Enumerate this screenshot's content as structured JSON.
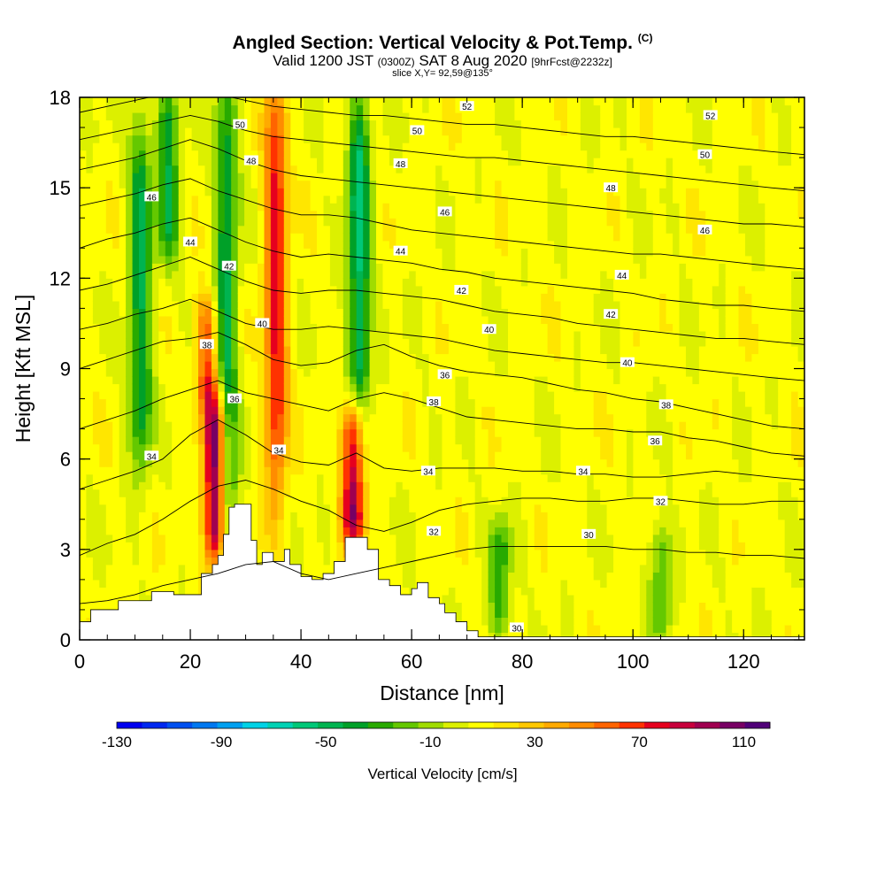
{
  "header": {
    "title_main": "Angled Section: Vertical Velocity & Pot.Temp.",
    "title_units": "(C)",
    "valid_prefix": "Valid 1200 JST",
    "valid_utc": "(0300Z)",
    "valid_date": "SAT 8 Aug 2020",
    "forecast_info": "[9hrFcst@2232z]",
    "slice_info": "slice X,Y= 92,59@135°"
  },
  "chart_data": {
    "type": "heatmap",
    "xlabel": "Distance [nm]",
    "ylabel": "Height [Kft MSL]",
    "xlim": [
      0,
      131
    ],
    "ylim": [
      0,
      18
    ],
    "x_ticks": [
      0,
      20,
      40,
      60,
      80,
      100,
      120
    ],
    "y_ticks": [
      0,
      3,
      6,
      9,
      12,
      15,
      18
    ],
    "colorbar": {
      "label": "Vertical Velocity [cm/s]",
      "range": [
        -130,
        120
      ],
      "tick_labels": [
        -130,
        -90,
        -50,
        -10,
        30,
        70,
        110
      ],
      "colors": [
        "#0000f0",
        "#0028f0",
        "#0050f0",
        "#0078f0",
        "#00a0f0",
        "#00d2e6",
        "#00d2b4",
        "#00c878",
        "#00b450",
        "#00a028",
        "#28aa00",
        "#64c800",
        "#a0dc00",
        "#dcf000",
        "#ffff00",
        "#ffe600",
        "#ffc800",
        "#ffaa00",
        "#ff8c00",
        "#ff6400",
        "#ff3200",
        "#e6001e",
        "#c8003c",
        "#a00050",
        "#780064",
        "#500078"
      ]
    },
    "updrafts": [
      {
        "x": 24.5,
        "z_bottom": 3.0,
        "z_top": 7.5,
        "peak": 115
      },
      {
        "x": 35.5,
        "z_bottom": 5.5,
        "z_top": 18.0,
        "peak": 75
      },
      {
        "x": 49.5,
        "z_bottom": 3.5,
        "z_top": 7.5,
        "peak": 100
      },
      {
        "x": 23.0,
        "z_bottom": 8.0,
        "z_top": 11.0,
        "peak": 60
      }
    ],
    "downdrafts": [
      {
        "x": 11,
        "z_bottom": 6.5,
        "z_top": 16.5,
        "peak": -45
      },
      {
        "x": 16,
        "z_bottom": 13.0,
        "z_top": 18.0,
        "peak": -40
      },
      {
        "x": 26.5,
        "z_bottom": 3.0,
        "z_top": 18.0,
        "peak": -45
      },
      {
        "x": 50.5,
        "z_bottom": 7.5,
        "z_top": 17.5,
        "peak": -55
      },
      {
        "x": 76,
        "z_bottom": 0.5,
        "z_top": 3.5,
        "peak": -30
      },
      {
        "x": 105,
        "z_bottom": 0.5,
        "z_top": 3.5,
        "peak": -25
      }
    ],
    "terrain": {
      "x": [
        0,
        1,
        2,
        7,
        13,
        17,
        22,
        24,
        25,
        26,
        27,
        28,
        31,
        32,
        33,
        35,
        37,
        38,
        40,
        42,
        44,
        46,
        48,
        52,
        54,
        56,
        58,
        60,
        61,
        63,
        65,
        66,
        68,
        70,
        72,
        131
      ],
      "z": [
        0.6,
        0.6,
        1.0,
        1.3,
        1.6,
        1.5,
        2.2,
        2.5,
        2.8,
        3.5,
        4.4,
        4.5,
        3.3,
        2.5,
        2.9,
        2.6,
        3.0,
        2.5,
        2.1,
        2.0,
        2.2,
        2.6,
        3.4,
        3.0,
        2.0,
        1.8,
        1.5,
        1.7,
        1.9,
        1.4,
        1.2,
        0.9,
        0.6,
        0.3,
        0.1,
        0.1
      ]
    },
    "isentropes": [
      {
        "label": "30",
        "z": [
          1.2,
          1.3,
          1.5,
          1.8,
          2.0,
          2.2,
          2.5,
          2.6,
          2.2,
          2.0,
          2.2,
          2.4,
          2.6,
          2.8,
          3.0,
          3.1,
          3.1,
          3.1,
          3.1,
          3.1,
          3.0,
          3.0,
          2.9,
          2.9,
          2.8,
          2.8,
          2.7
        ]
      },
      {
        "label": "32",
        "z": [
          2.8,
          3.2,
          3.5,
          4.0,
          4.6,
          5.1,
          5.3,
          5.0,
          4.6,
          4.3,
          3.8,
          3.6,
          3.9,
          4.3,
          4.5,
          4.6,
          4.7,
          4.7,
          4.6,
          4.6,
          4.7,
          4.7,
          4.6,
          4.5,
          4.5,
          4.6,
          4.6
        ]
      },
      {
        "label": "34",
        "z": [
          5.0,
          5.3,
          5.6,
          6.0,
          6.8,
          7.3,
          6.8,
          6.2,
          5.9,
          5.8,
          6.2,
          5.7,
          5.6,
          5.7,
          5.7,
          5.7,
          5.6,
          5.6,
          5.5,
          5.5,
          5.4,
          5.4,
          5.5,
          5.6,
          5.5,
          5.4,
          5.3
        ]
      },
      {
        "label": "36",
        "z": [
          7.0,
          7.3,
          7.6,
          8.0,
          8.3,
          8.6,
          8.2,
          8.0,
          7.8,
          7.6,
          8.0,
          8.2,
          8.0,
          7.7,
          7.4,
          7.3,
          7.2,
          7.1,
          7.0,
          7.0,
          6.9,
          6.9,
          6.7,
          6.6,
          6.4,
          6.2,
          6.1
        ]
      },
      {
        "label": "38",
        "z": [
          9.0,
          9.3,
          9.6,
          9.9,
          10.0,
          10.2,
          9.8,
          9.3,
          9.1,
          9.2,
          9.6,
          9.8,
          9.4,
          9.1,
          8.9,
          8.8,
          8.7,
          8.5,
          8.3,
          8.2,
          8.0,
          7.9,
          7.7,
          7.5,
          7.3,
          7.1,
          7.0
        ]
      },
      {
        "label": "40",
        "z": [
          10.3,
          10.5,
          10.8,
          11.0,
          11.3,
          10.9,
          10.5,
          10.3,
          10.3,
          10.4,
          10.3,
          10.2,
          10.1,
          10.0,
          9.8,
          9.6,
          9.5,
          9.4,
          9.3,
          9.2,
          9.2,
          9.1,
          9.0,
          8.9,
          8.8,
          8.7,
          8.6
        ]
      },
      {
        "label": "42",
        "z": [
          11.6,
          11.8,
          12.1,
          12.4,
          12.7,
          12.3,
          11.9,
          11.6,
          11.5,
          11.6,
          11.6,
          11.5,
          11.4,
          11.3,
          11.1,
          10.9,
          10.8,
          10.7,
          10.5,
          10.4,
          10.3,
          10.2,
          10.1,
          10.0,
          10.0,
          9.9,
          9.8
        ]
      },
      {
        "label": "44",
        "z": [
          13.0,
          13.3,
          13.5,
          13.8,
          14.0,
          13.6,
          13.2,
          12.9,
          12.7,
          12.8,
          12.7,
          12.6,
          12.5,
          12.3,
          12.2,
          12.0,
          11.9,
          11.8,
          11.7,
          11.6,
          11.5,
          11.3,
          11.2,
          11.1,
          11.1,
          11.0,
          10.9
        ]
      },
      {
        "label": "46",
        "z": [
          14.4,
          14.6,
          14.8,
          15.1,
          15.3,
          14.9,
          14.6,
          14.3,
          14.1,
          14.1,
          14.0,
          13.8,
          13.6,
          13.5,
          13.4,
          13.3,
          13.2,
          13.1,
          13.0,
          12.9,
          12.8,
          12.8,
          12.7,
          12.6,
          12.5,
          12.4,
          12.3
        ]
      },
      {
        "label": "48",
        "z": [
          15.6,
          15.8,
          16.0,
          16.3,
          16.6,
          16.3,
          15.9,
          15.6,
          15.4,
          15.3,
          15.2,
          15.1,
          15.0,
          14.9,
          14.8,
          14.7,
          14.6,
          14.5,
          14.4,
          14.3,
          14.2,
          14.1,
          14.0,
          13.9,
          13.8,
          13.8,
          13.7
        ]
      },
      {
        "label": "50",
        "z": [
          16.6,
          16.8,
          17.0,
          17.2,
          17.4,
          17.2,
          16.9,
          16.7,
          16.6,
          16.5,
          16.4,
          16.3,
          16.2,
          16.1,
          16.0,
          16.0,
          15.9,
          15.8,
          15.7,
          15.6,
          15.5,
          15.4,
          15.3,
          15.2,
          15.1,
          15.0,
          14.9
        ]
      },
      {
        "label": "52",
        "z": [
          17.5,
          17.7,
          17.9,
          18.1,
          18.2,
          18.1,
          17.9,
          17.7,
          17.6,
          17.5,
          17.4,
          17.4,
          17.3,
          17.2,
          17.1,
          17.1,
          17.0,
          16.9,
          16.8,
          16.7,
          16.7,
          16.6,
          16.5,
          16.4,
          16.3,
          16.2,
          16.1
        ]
      }
    ],
    "isentrope_x": [
      0,
      5,
      10,
      15,
      20,
      25,
      30,
      35,
      40,
      45,
      50,
      55,
      60,
      65,
      70,
      75,
      80,
      85,
      90,
      95,
      100,
      105,
      110,
      115,
      120,
      125,
      131
    ],
    "isentrope_labels": [
      {
        "text": "34",
        "x": 13,
        "z": 6.1
      },
      {
        "text": "36",
        "x": 28,
        "z": 8.0
      },
      {
        "text": "38",
        "x": 23,
        "z": 9.8
      },
      {
        "text": "40",
        "x": 33,
        "z": 10.5
      },
      {
        "text": "42",
        "x": 27,
        "z": 12.4
      },
      {
        "text": "44",
        "x": 20,
        "z": 13.2
      },
      {
        "text": "46",
        "x": 13,
        "z": 14.7
      },
      {
        "text": "48",
        "x": 31,
        "z": 15.9
      },
      {
        "text": "50",
        "x": 29,
        "z": 17.1
      },
      {
        "text": "34",
        "x": 36,
        "z": 6.3
      },
      {
        "text": "44",
        "x": 58,
        "z": 12.9
      },
      {
        "text": "46",
        "x": 66,
        "z": 14.2
      },
      {
        "text": "48",
        "x": 58,
        "z": 15.8
      },
      {
        "text": "50",
        "x": 61,
        "z": 16.9
      },
      {
        "text": "52",
        "x": 70,
        "z": 17.7
      },
      {
        "text": "36",
        "x": 66,
        "z": 8.8
      },
      {
        "text": "38",
        "x": 64,
        "z": 7.9
      },
      {
        "text": "40",
        "x": 74,
        "z": 10.3
      },
      {
        "text": "42",
        "x": 69,
        "z": 11.6
      },
      {
        "text": "34",
        "x": 63,
        "z": 5.6
      },
      {
        "text": "32",
        "x": 64,
        "z": 3.6
      },
      {
        "text": "30",
        "x": 79,
        "z": 0.4
      },
      {
        "text": "30",
        "x": 92,
        "z": 3.5
      },
      {
        "text": "32",
        "x": 105,
        "z": 4.6
      },
      {
        "text": "34",
        "x": 91,
        "z": 5.6
      },
      {
        "text": "36",
        "x": 104,
        "z": 6.6
      },
      {
        "text": "38",
        "x": 106,
        "z": 7.8
      },
      {
        "text": "40",
        "x": 99,
        "z": 9.2
      },
      {
        "text": "42",
        "x": 96,
        "z": 10.8
      },
      {
        "text": "44",
        "x": 98,
        "z": 12.1
      },
      {
        "text": "46",
        "x": 113,
        "z": 13.6
      },
      {
        "text": "48",
        "x": 96,
        "z": 15.0
      },
      {
        "text": "50",
        "x": 113,
        "z": 16.1
      },
      {
        "text": "52",
        "x": 114,
        "z": 17.4
      }
    ]
  }
}
